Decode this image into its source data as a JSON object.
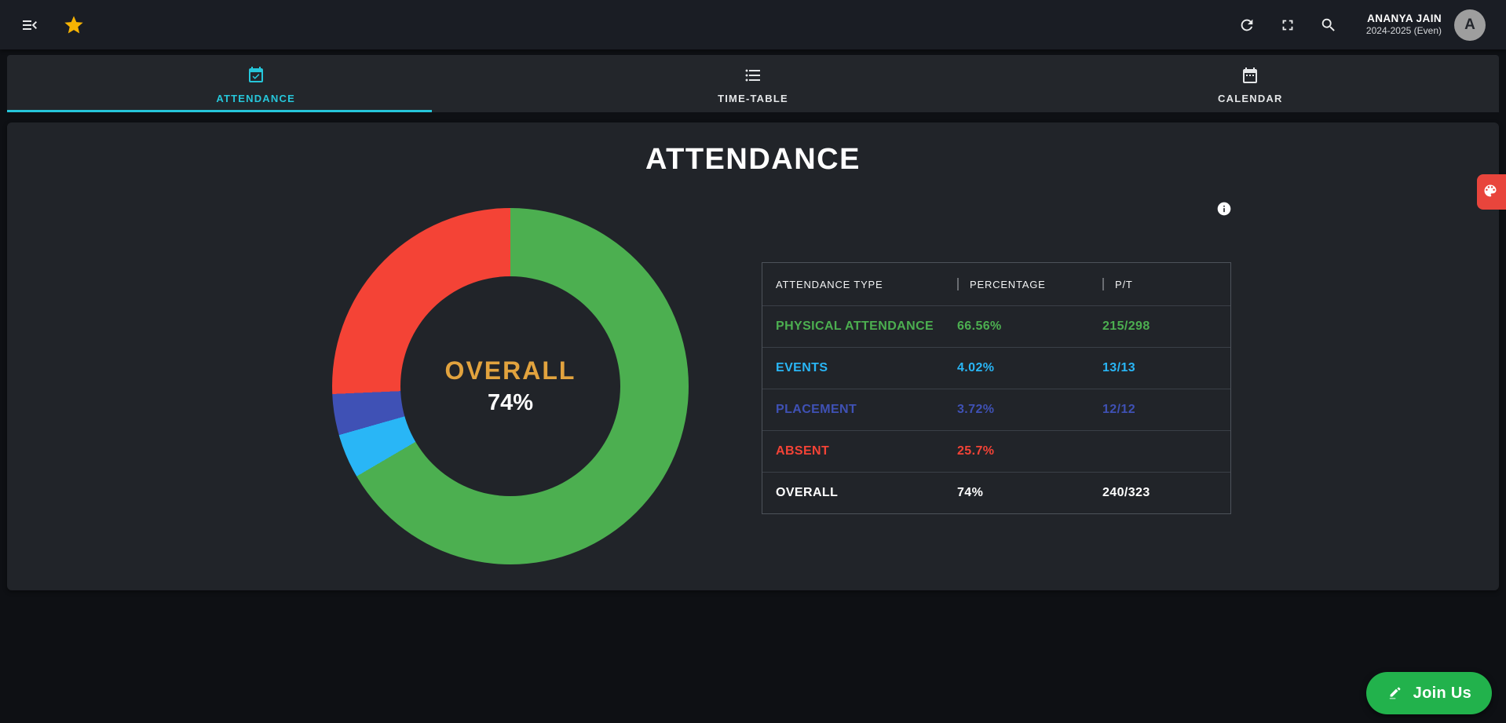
{
  "topbar": {
    "user": {
      "name": "ANANYA JAIN",
      "session": "2024-2025 (Even)",
      "avatar_letter": "A"
    },
    "icons": [
      "menu-open-icon",
      "star-icon",
      "refresh-icon",
      "fullscreen-icon",
      "search-icon"
    ]
  },
  "tabs": [
    {
      "label": "ATTENDANCE",
      "icon": "calendar-check-icon",
      "active": true
    },
    {
      "label": "TIME-TABLE",
      "icon": "list-icon",
      "active": false
    },
    {
      "label": "CALENDAR",
      "icon": "calendar-icon",
      "active": false
    }
  ],
  "main": {
    "title": "ATTENDANCE"
  },
  "chart_data": {
    "type": "pie",
    "variant": "donut",
    "title": "ATTENDANCE",
    "center_label": "OVERALL",
    "center_value": "74%",
    "start_angle_deg": 0,
    "direction": "clockwise",
    "segments": [
      {
        "label": "PHYSICAL ATTENDANCE",
        "value": 66.56,
        "color": "#4caf50"
      },
      {
        "label": "EVENTS",
        "value": 4.02,
        "color": "#29b6f6"
      },
      {
        "label": "PLACEMENT",
        "value": 3.72,
        "color": "#3f51b5"
      },
      {
        "label": "ABSENT",
        "value": 25.7,
        "color": "#f44336"
      }
    ]
  },
  "table": {
    "headers": [
      "ATTENDANCE TYPE",
      "PERCENTAGE",
      "P/T"
    ],
    "rows": [
      {
        "type": "PHYSICAL ATTENDANCE",
        "percentage": "66.56%",
        "pt": "215/298",
        "color": "#4caf50"
      },
      {
        "type": "EVENTS",
        "percentage": "4.02%",
        "pt": "13/13",
        "color": "#29b6f6"
      },
      {
        "type": "PLACEMENT",
        "percentage": "3.72%",
        "pt": "12/12",
        "color": "#3f51b5"
      },
      {
        "type": "ABSENT",
        "percentage": "25.7%",
        "pt": "",
        "color": "#f44336"
      },
      {
        "type": "OVERALL",
        "percentage": "74%",
        "pt": "240/323",
        "color": "#ffffff"
      }
    ]
  },
  "floating": {
    "join_us_label": "Join Us"
  },
  "colors": {
    "accent_cyan": "#26c6da",
    "amber_center": "#e2a33e",
    "join_green": "#22b24c",
    "palette_red": "#e8453c",
    "topbar_bg": "#1a1d24",
    "card_bg": "#212429",
    "page_bg": "#0e1014"
  }
}
